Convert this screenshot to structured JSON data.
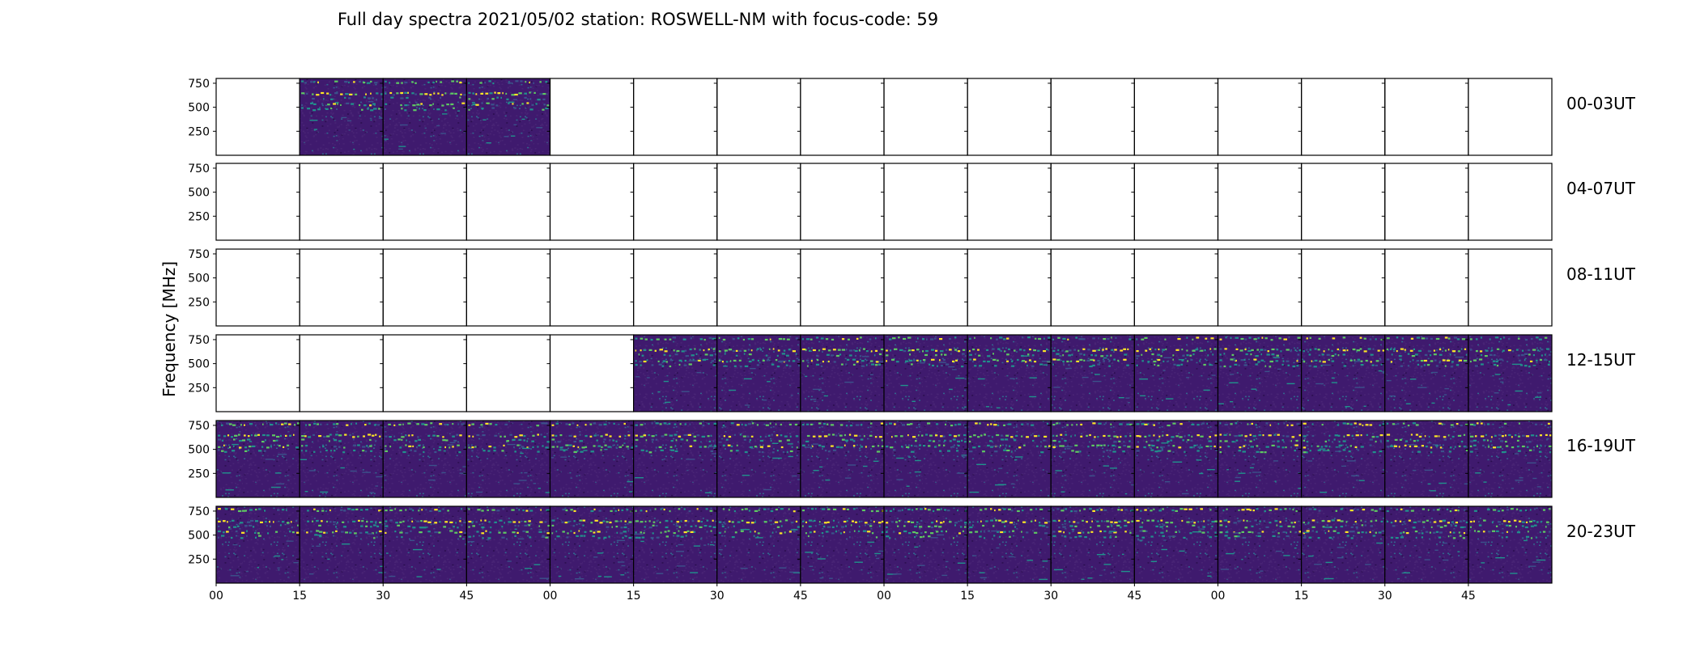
{
  "chart_data": {
    "type": "heatmap",
    "title": "Full day spectra 2021/05/02 station: ROSWELL-NM with focus-code: 59",
    "ylabel": "Frequency [MHz]",
    "xlabel": "",
    "ylim": [
      0,
      800
    ],
    "yticks": [
      250,
      500,
      750
    ],
    "xticks": [
      "00",
      "15",
      "30",
      "45",
      "00",
      "15",
      "30",
      "45",
      "00",
      "15",
      "30",
      "45",
      "00",
      "15",
      "30",
      "45"
    ],
    "panels_per_row": 16,
    "panel_minutes": 15,
    "colormap": [
      "#440154",
      "#3b528b",
      "#21918c",
      "#5ec962",
      "#fde725"
    ],
    "rows": [
      {
        "label": "00-03UT",
        "data_panels": [
          1,
          2,
          3
        ]
      },
      {
        "label": "04-07UT",
        "data_panels": []
      },
      {
        "label": "08-11UT",
        "data_panels": []
      },
      {
        "label": "12-15UT",
        "data_panels": [
          5,
          6,
          7,
          8,
          9,
          10,
          11,
          12,
          13,
          14,
          15
        ]
      },
      {
        "label": "16-19UT",
        "data_panels": [
          0,
          1,
          2,
          3,
          4,
          5,
          6,
          7,
          8,
          9,
          10,
          11,
          12,
          13,
          14,
          15
        ]
      },
      {
        "label": "20-23UT",
        "data_panels": [
          0,
          1,
          2,
          3,
          4,
          5,
          6,
          7,
          8,
          9,
          10,
          11,
          12,
          13,
          14,
          15
        ]
      }
    ],
    "interference_bands_mhz": [
      {
        "freq": 770,
        "strength": 0.75
      },
      {
        "freq": 650,
        "strength": 0.95
      },
      {
        "freq": 600,
        "strength": 0.55
      },
      {
        "freq": 540,
        "strength": 0.8
      },
      {
        "freq": 490,
        "strength": 0.45
      }
    ],
    "grid": false,
    "legend": "none"
  }
}
